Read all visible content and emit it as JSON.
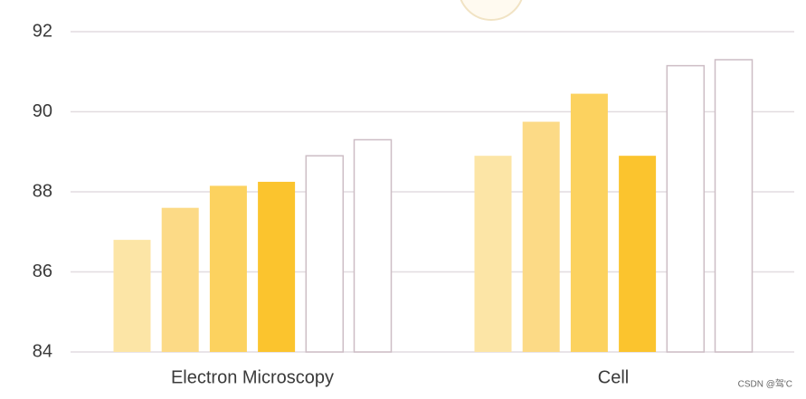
{
  "chart_data": {
    "type": "bar",
    "categories": [
      "Electron Microscopy",
      "Cell"
    ],
    "series": [
      {
        "color": "#fce5a6",
        "values": [
          86.8,
          88.9
        ]
      },
      {
        "color": "#fcda86",
        "values": [
          87.6,
          89.75
        ]
      },
      {
        "color": "#fcd25f",
        "values": [
          88.15,
          90.45
        ]
      },
      {
        "color": "#fbc42e",
        "values": [
          88.25,
          88.9
        ]
      },
      {
        "color": "#ffffff",
        "edgecolor": "#cdbdc5",
        "values": [
          88.9,
          91.15
        ]
      },
      {
        "color": "#ffffff",
        "edgecolor": "#cdbdc5",
        "values": [
          89.3,
          91.3
        ]
      }
    ],
    "ylim": [
      84,
      92
    ],
    "yticks": [
      84,
      86,
      88,
      90,
      92
    ],
    "grid": true,
    "watermark": "CSDN @驾'C"
  }
}
